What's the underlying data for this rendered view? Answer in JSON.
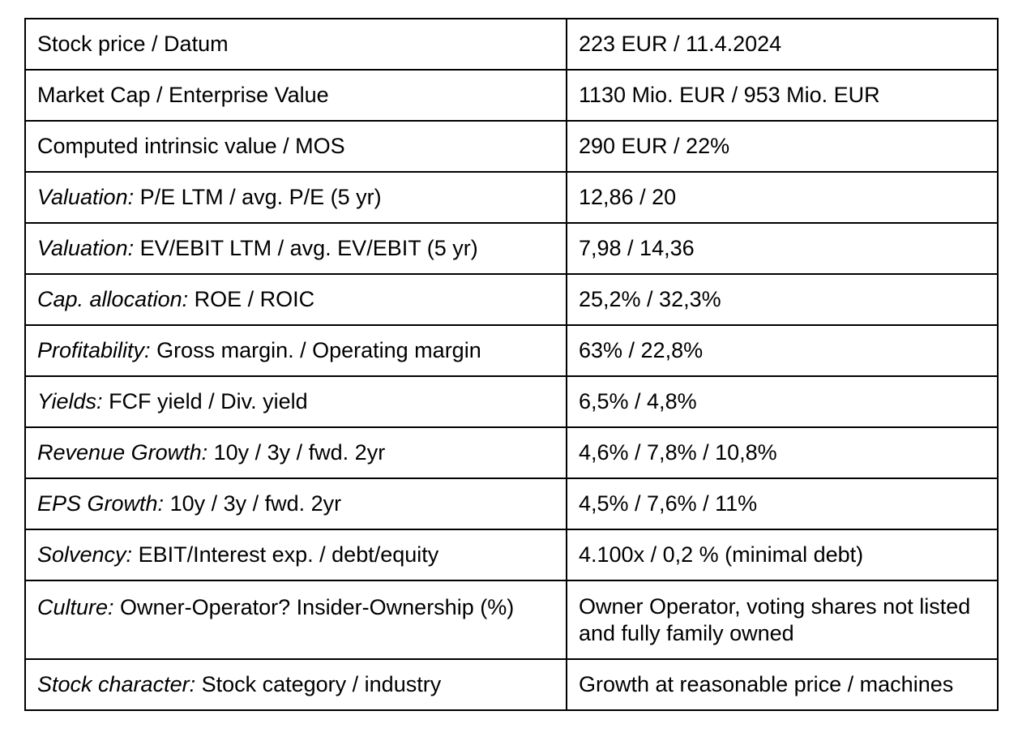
{
  "rows": [
    {
      "category": "",
      "metric": "Stock price / Datum",
      "value": "223 EUR / 11.4.2024"
    },
    {
      "category": "",
      "metric": "Market Cap / Enterprise Value",
      "value": "1130 Mio. EUR / 953 Mio. EUR"
    },
    {
      "category": "",
      "metric": "Computed intrinsic value / MOS",
      "value": "290 EUR / 22%"
    },
    {
      "category": "Valuation:",
      "metric": " P/E LTM / avg. P/E (5 yr)",
      "value": "12,86 / 20"
    },
    {
      "category": "Valuation:",
      "metric": " EV/EBIT LTM / avg. EV/EBIT (5 yr)",
      "value": "7,98 / 14,36"
    },
    {
      "category": "Cap. allocation:",
      "metric": " ROE / ROIC",
      "value": "25,2% / 32,3%"
    },
    {
      "category": "Profitability:",
      "metric": " Gross margin. / Operating margin",
      "value": "63% / 22,8%"
    },
    {
      "category": "Yields:",
      "metric": " FCF yield / Div. yield",
      "value": "6,5% / 4,8%"
    },
    {
      "category": "Revenue Growth:",
      "metric": " 10y / 3y / fwd. 2yr",
      "value": "4,6% / 7,8% / 10,8%"
    },
    {
      "category": "EPS Growth:",
      "metric": " 10y / 3y / fwd. 2yr",
      "value": "4,5% / 7,6% / 11%"
    },
    {
      "category": "Solvency:",
      "metric": " EBIT/Interest exp. / debt/equity",
      "value": "4.100x / 0,2 % (minimal debt)"
    },
    {
      "category": "Culture:",
      "metric": " Owner-Operator? Insider-Ownership (%)",
      "value": "Owner Operator, voting shares not listed and fully family owned"
    },
    {
      "category": "Stock character:",
      "metric": " Stock category / industry",
      "value": "Growth at reasonable price / machines"
    }
  ]
}
